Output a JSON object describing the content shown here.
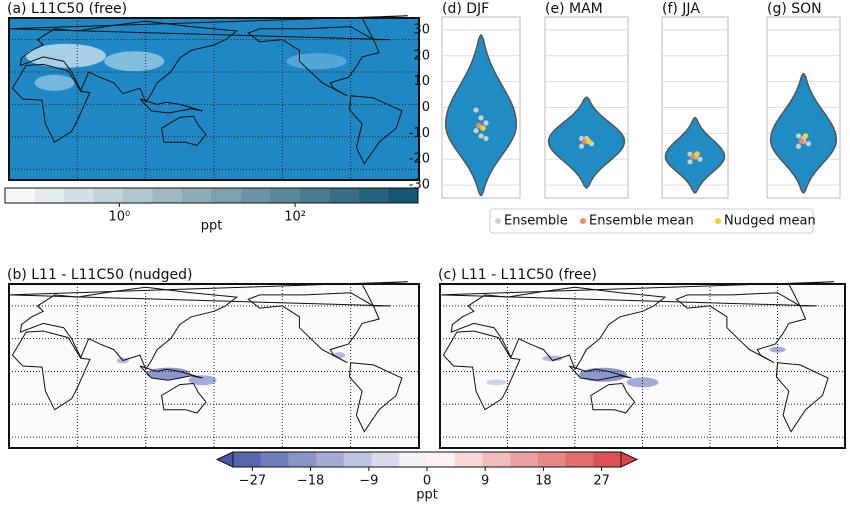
{
  "chart_data": [
    {
      "type": "map",
      "title": "(a) L11C50 (free)",
      "colorbar": {
        "label": "ppt",
        "log": true,
        "lim": [
          0.05,
          2500
        ],
        "ticks": [
          {
            "value": 1,
            "label": "10⁰"
          },
          {
            "value": 100,
            "label": "10²"
          }
        ],
        "colors": [
          "#ffffff",
          "#0b4f6c"
        ]
      }
    },
    {
      "type": "violin",
      "categories": [
        "(d) DJF",
        "(e) MAM",
        "(f) JJA",
        "(g) SON"
      ],
      "ylim": [
        -35,
        35
      ],
      "yticks": [
        -30,
        -20,
        -10,
        0,
        10,
        20,
        30
      ],
      "grid": true,
      "range_min": [
        -34,
        -31,
        -33,
        -33
      ],
      "range_max": [
        28,
        4,
        -4,
        13
      ],
      "color": "#1f8cc4",
      "series": [
        {
          "name": "Ensemble",
          "color": "#cfcfcf",
          "values": [
            [
              -1,
              -4,
              -6,
              -9,
              -11,
              -12
            ],
            [
              -12,
              -13,
              -14,
              -15,
              -12
            ],
            [
              -18,
              -19,
              -20,
              -21,
              -19
            ],
            [
              -11,
              -13,
              -14,
              -15,
              -12
            ]
          ]
        },
        {
          "name": "Ensemble mean",
          "color": "#f08a66",
          "values": [
            -7,
            -13,
            -19,
            -13
          ]
        },
        {
          "name": "Nudged mean",
          "color": "#f2d22e",
          "values": [
            -8,
            -13,
            -18,
            -11
          ]
        }
      ],
      "legend": "bottom"
    },
    {
      "type": "map",
      "title": "(b) L11 - L11C50 (nudged)"
    },
    {
      "type": "map",
      "title": "(c) L11 - L11C50 (free)",
      "colorbar": {
        "label": "ppt",
        "lim": [
          -30,
          30
        ],
        "ticks": [
          {
            "value": -27,
            "label": "−27"
          },
          {
            "value": -18,
            "label": "−18"
          },
          {
            "value": -9,
            "label": "−9"
          },
          0,
          9,
          18,
          27
        ],
        "colors": [
          "#4a58a8",
          "#ffffff",
          "#d94545"
        ]
      }
    }
  ]
}
